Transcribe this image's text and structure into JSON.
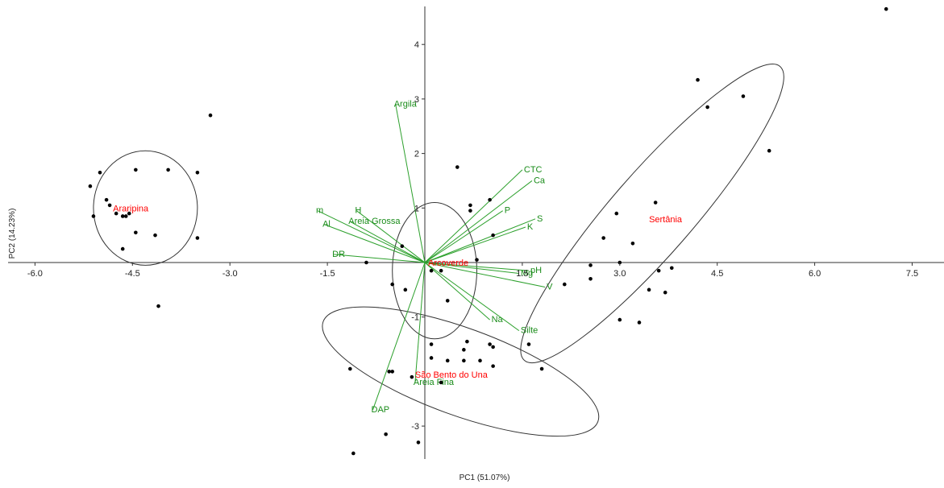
{
  "colors": {
    "vector": "#2ca02c",
    "vector_label": "#1a8c1a",
    "group_label": "#ff0000",
    "point": "#000000",
    "axis": "#333333",
    "ellipse": "#333333"
  },
  "chart_data": {
    "type": "scatter",
    "title": "",
    "xlabel": "PC1 (51.07%)",
    "ylabel": "PC2 (14.23%)",
    "xlim": [
      -6.2,
      7.9
    ],
    "ylim": [
      -3.55,
      4.75
    ],
    "x_ticks": [
      -6.0,
      -4.5,
      -3.0,
      -1.5,
      1.5,
      3.0,
      4.5,
      6.0,
      7.5
    ],
    "x_tick_labels": [
      "-6.0",
      "-4.5",
      "-3.0",
      "-1.5",
      "1.5",
      "3.0",
      "4.5",
      "6.0",
      "7.5"
    ],
    "y_ticks": [
      4,
      3,
      2,
      1,
      -1,
      -3
    ],
    "y_tick_labels": [
      "4",
      "3",
      "2",
      "1",
      "-1",
      "-3"
    ],
    "grid": false,
    "points": [
      {
        "x": 7.1,
        "y": 4.65
      },
      {
        "x": 4.2,
        "y": 3.35
      },
      {
        "x": 4.35,
        "y": 2.85
      },
      {
        "x": 4.9,
        "y": 3.05
      },
      {
        "x": 5.3,
        "y": 2.05
      },
      {
        "x": 3.55,
        "y": 1.1
      },
      {
        "x": 2.95,
        "y": 0.9
      },
      {
        "x": 2.75,
        "y": 0.45
      },
      {
        "x": 3.2,
        "y": 0.35
      },
      {
        "x": 2.55,
        "y": -0.05
      },
      {
        "x": 3.0,
        "y": 0.0
      },
      {
        "x": 3.6,
        "y": -0.15
      },
      {
        "x": 3.8,
        "y": -0.1
      },
      {
        "x": 2.15,
        "y": -0.4
      },
      {
        "x": 2.55,
        "y": -0.3
      },
      {
        "x": 3.45,
        "y": -0.5
      },
      {
        "x": 3.7,
        "y": -0.55
      },
      {
        "x": 3.0,
        "y": -1.05
      },
      {
        "x": 3.3,
        "y": -1.1
      },
      {
        "x": -5.15,
        "y": 1.4
      },
      {
        "x": -5.0,
        "y": 1.65
      },
      {
        "x": -4.9,
        "y": 1.15
      },
      {
        "x": -4.85,
        "y": 1.05
      },
      {
        "x": -5.1,
        "y": 0.85
      },
      {
        "x": -4.75,
        "y": 0.9
      },
      {
        "x": -4.65,
        "y": 0.85
      },
      {
        "x": -4.6,
        "y": 0.85
      },
      {
        "x": -4.55,
        "y": 0.9
      },
      {
        "x": -4.65,
        "y": 0.25
      },
      {
        "x": -4.45,
        "y": 0.55
      },
      {
        "x": -4.15,
        "y": 0.5
      },
      {
        "x": -4.45,
        "y": 1.7
      },
      {
        "x": -3.95,
        "y": 1.7
      },
      {
        "x": -3.5,
        "y": 1.65
      },
      {
        "x": -3.5,
        "y": 0.45
      },
      {
        "x": -3.3,
        "y": 2.7
      },
      {
        "x": -4.1,
        "y": -0.8
      },
      {
        "x": 0.5,
        "y": 1.75
      },
      {
        "x": 1.0,
        "y": 1.15
      },
      {
        "x": 0.7,
        "y": 1.05
      },
      {
        "x": 0.7,
        "y": 0.95
      },
      {
        "x": 1.05,
        "y": 0.5
      },
      {
        "x": -0.35,
        "y": 0.3
      },
      {
        "x": 0.8,
        "y": 0.05
      },
      {
        "x": -0.9,
        "y": 0.0
      },
      {
        "x": 0.1,
        "y": -0.15
      },
      {
        "x": 0.25,
        "y": -0.15
      },
      {
        "x": -0.5,
        "y": -0.4
      },
      {
        "x": -0.3,
        "y": -0.5
      },
      {
        "x": 0.35,
        "y": -0.7
      },
      {
        "x": 0.1,
        "y": -1.5
      },
      {
        "x": 0.65,
        "y": -1.45
      },
      {
        "x": 1.0,
        "y": -1.5
      },
      {
        "x": 1.05,
        "y": -1.55
      },
      {
        "x": 1.6,
        "y": -1.5
      },
      {
        "x": 0.6,
        "y": -1.6
      },
      {
        "x": 0.1,
        "y": -1.75
      },
      {
        "x": 0.35,
        "y": -1.8
      },
      {
        "x": 0.6,
        "y": -1.8
      },
      {
        "x": 0.85,
        "y": -1.8
      },
      {
        "x": 1.05,
        "y": -1.9
      },
      {
        "x": 1.8,
        "y": -1.95
      },
      {
        "x": -1.15,
        "y": -1.95
      },
      {
        "x": -0.55,
        "y": -2.0
      },
      {
        "x": -0.5,
        "y": -2.0
      },
      {
        "x": -0.2,
        "y": -2.1
      },
      {
        "x": 0.25,
        "y": -2.2
      },
      {
        "x": -0.6,
        "y": -3.15
      },
      {
        "x": -0.1,
        "y": -3.3
      },
      {
        "x": -1.1,
        "y": -3.5
      }
    ],
    "vectors": [
      {
        "name": "Argila",
        "x": -0.45,
        "y": 2.9
      },
      {
        "name": "CTC",
        "x": 1.5,
        "y": 1.7
      },
      {
        "name": "Ca",
        "x": 1.65,
        "y": 1.5
      },
      {
        "name": "P",
        "x": 1.2,
        "y": 0.95
      },
      {
        "name": "S",
        "x": 1.7,
        "y": 0.8
      },
      {
        "name": "K",
        "x": 1.55,
        "y": 0.65
      },
      {
        "name": "Mg",
        "x": 1.45,
        "y": -0.2
      },
      {
        "name": "pH",
        "x": 1.6,
        "y": -0.15
      },
      {
        "name": "V",
        "x": 1.85,
        "y": -0.45
      },
      {
        "name": "Na",
        "x": 1.0,
        "y": -1.05
      },
      {
        "name": "Silte",
        "x": 1.45,
        "y": -1.25
      },
      {
        "name": "Areia Fina",
        "x": -0.15,
        "y": -2.2
      },
      {
        "name": "DAP",
        "x": -0.8,
        "y": -2.7
      },
      {
        "name": "DR",
        "x": -1.4,
        "y": 0.15
      },
      {
        "name": "Al",
        "x": -1.55,
        "y": 0.7
      },
      {
        "name": "m",
        "x": -1.65,
        "y": 0.95
      },
      {
        "name": "H",
        "x": -1.05,
        "y": 0.95
      },
      {
        "name": "Areia Grossa",
        "x": -1.15,
        "y": 0.75
      }
    ],
    "groups": [
      {
        "name": "Araripina",
        "cx": -4.3,
        "cy": 1.0,
        "rx": 0.8,
        "ry": 1.05,
        "rot": 0,
        "label_x": -4.8,
        "label_y": 1.0
      },
      {
        "name": "Arcoverde",
        "cx": 0.15,
        "cy": -0.15,
        "rx": 0.65,
        "ry": 1.25,
        "rot": 0,
        "label_x": 0.05,
        "label_y": 0.0
      },
      {
        "name": "Sertânia",
        "cx": 3.5,
        "cy": 0.9,
        "rx": 3.0,
        "ry": 0.75,
        "rot": -49,
        "label_x": 3.45,
        "label_y": 0.8
      },
      {
        "name": "São Bento do Una",
        "cx": 0.55,
        "cy": -2.0,
        "rx": 2.25,
        "ry": 0.8,
        "rot": 20,
        "label_x": -0.15,
        "label_y": -2.05
      }
    ]
  }
}
